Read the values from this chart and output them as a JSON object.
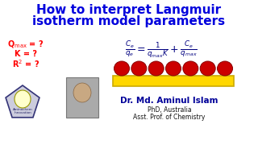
{
  "title_line1": "How to interpret Langmuir",
  "title_line2": "isotherm model parameters",
  "title_color": "#0000DD",
  "bg_color": "#FFFFFF",
  "params_color": "#FF0000",
  "formula_color": "#000080",
  "bar_color": "#FFD700",
  "bar_edge_color": "#CCAA00",
  "circle_color": "#CC0000",
  "circle_edge_color": "#880000",
  "name_text": "Dr. Md. Aminul Islam",
  "name_color": "#000099",
  "phd_text": "PhD, Australia",
  "asst_text": "Asst. Prof. of Chemistry",
  "sub_text_color": "#111111",
  "n_circles": 7,
  "logo_bg": "#DDDDDD",
  "logo_edge": "#333377",
  "photo_bg": "#AAAAAA"
}
